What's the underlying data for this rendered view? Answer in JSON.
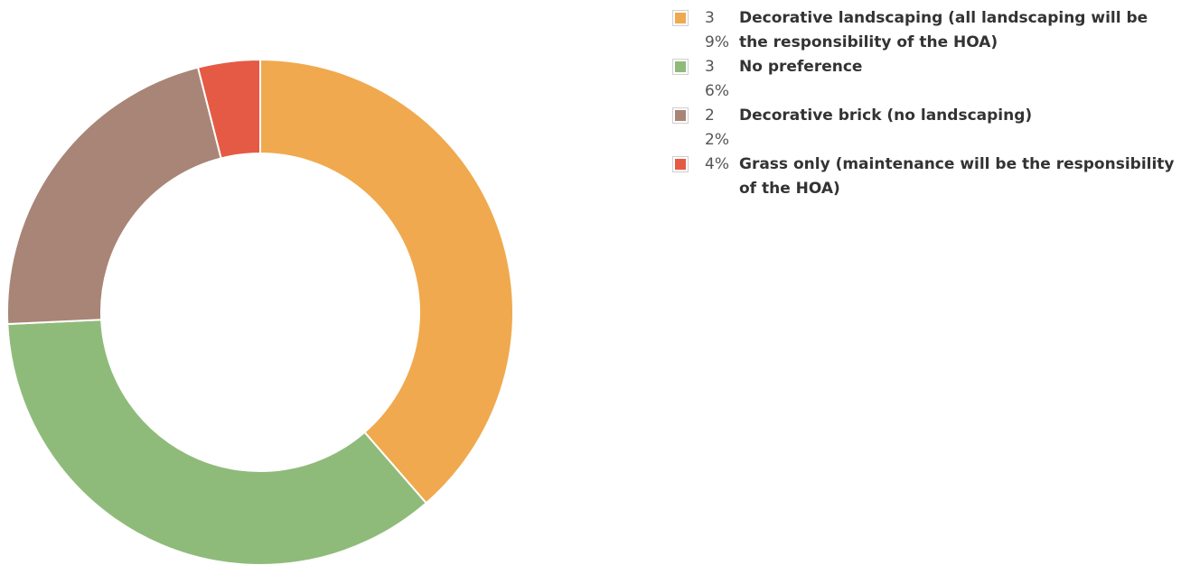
{
  "chart_data": {
    "type": "pie",
    "donut": true,
    "legend_position": "right",
    "series": [
      {
        "name": "Decorative landscaping (all landscaping will be the responsibility of the HOA)",
        "percent_label": "39%",
        "value": 39,
        "color": "#f0a94e"
      },
      {
        "name": "No preference",
        "percent_label": "36%",
        "value": 36,
        "color": "#8fbb7a"
      },
      {
        "name": "Decorative brick (no landscaping)",
        "percent_label": "22%",
        "value": 22,
        "color": "#a88576"
      },
      {
        "name": "Grass only (maintenance will be the responsibility of the HOA)",
        "percent_label": "4%",
        "value": 4,
        "color": "#e55a44"
      }
    ]
  }
}
